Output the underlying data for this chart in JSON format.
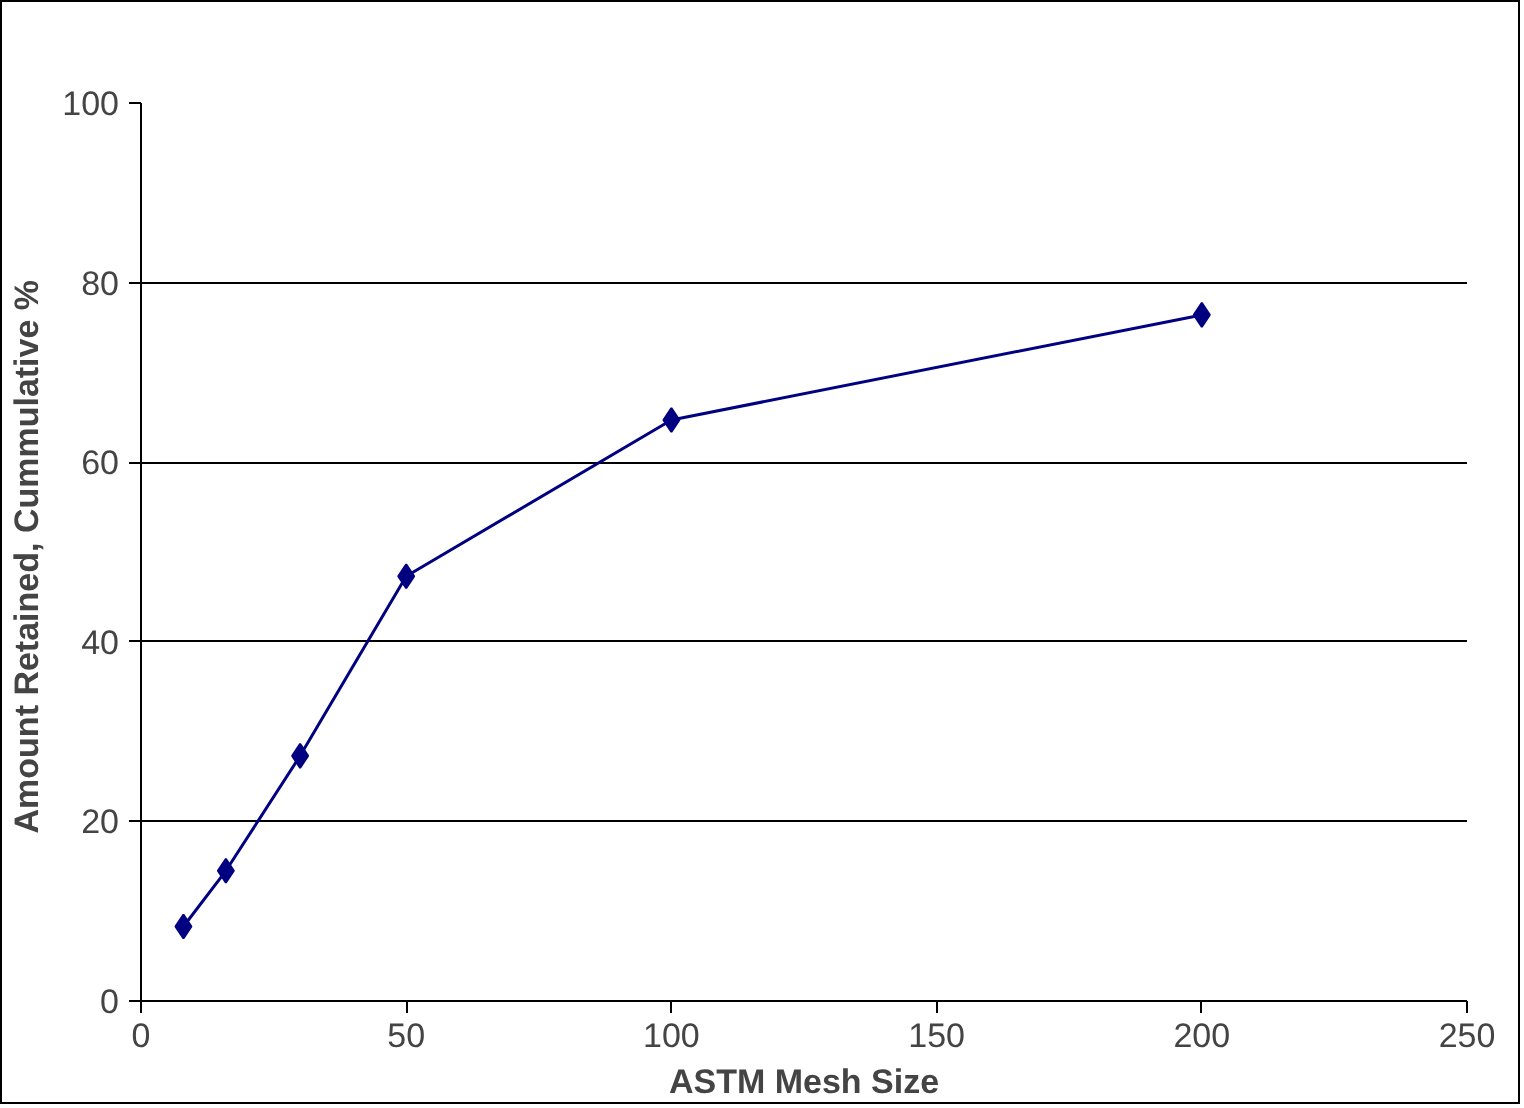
{
  "chart_data": {
    "type": "line",
    "xlabel": "ASTM Mesh Size",
    "ylabel": "Amount  Retained, Cummulative %",
    "x": [
      8,
      16,
      30,
      50,
      100,
      200
    ],
    "series": [
      {
        "color": "#000080",
        "values": [
          8.3,
          14.5,
          27.3,
          47.3,
          64.7,
          76.4
        ]
      }
    ],
    "xlim": [
      0,
      250
    ],
    "xticks": [
      0,
      50,
      100,
      150,
      200,
      250
    ],
    "ylim": [
      0,
      100
    ],
    "yticks": [
      0,
      20,
      40,
      60,
      80,
      100
    ],
    "grid": "y",
    "marker": "diamond",
    "line_style": "solid"
  }
}
